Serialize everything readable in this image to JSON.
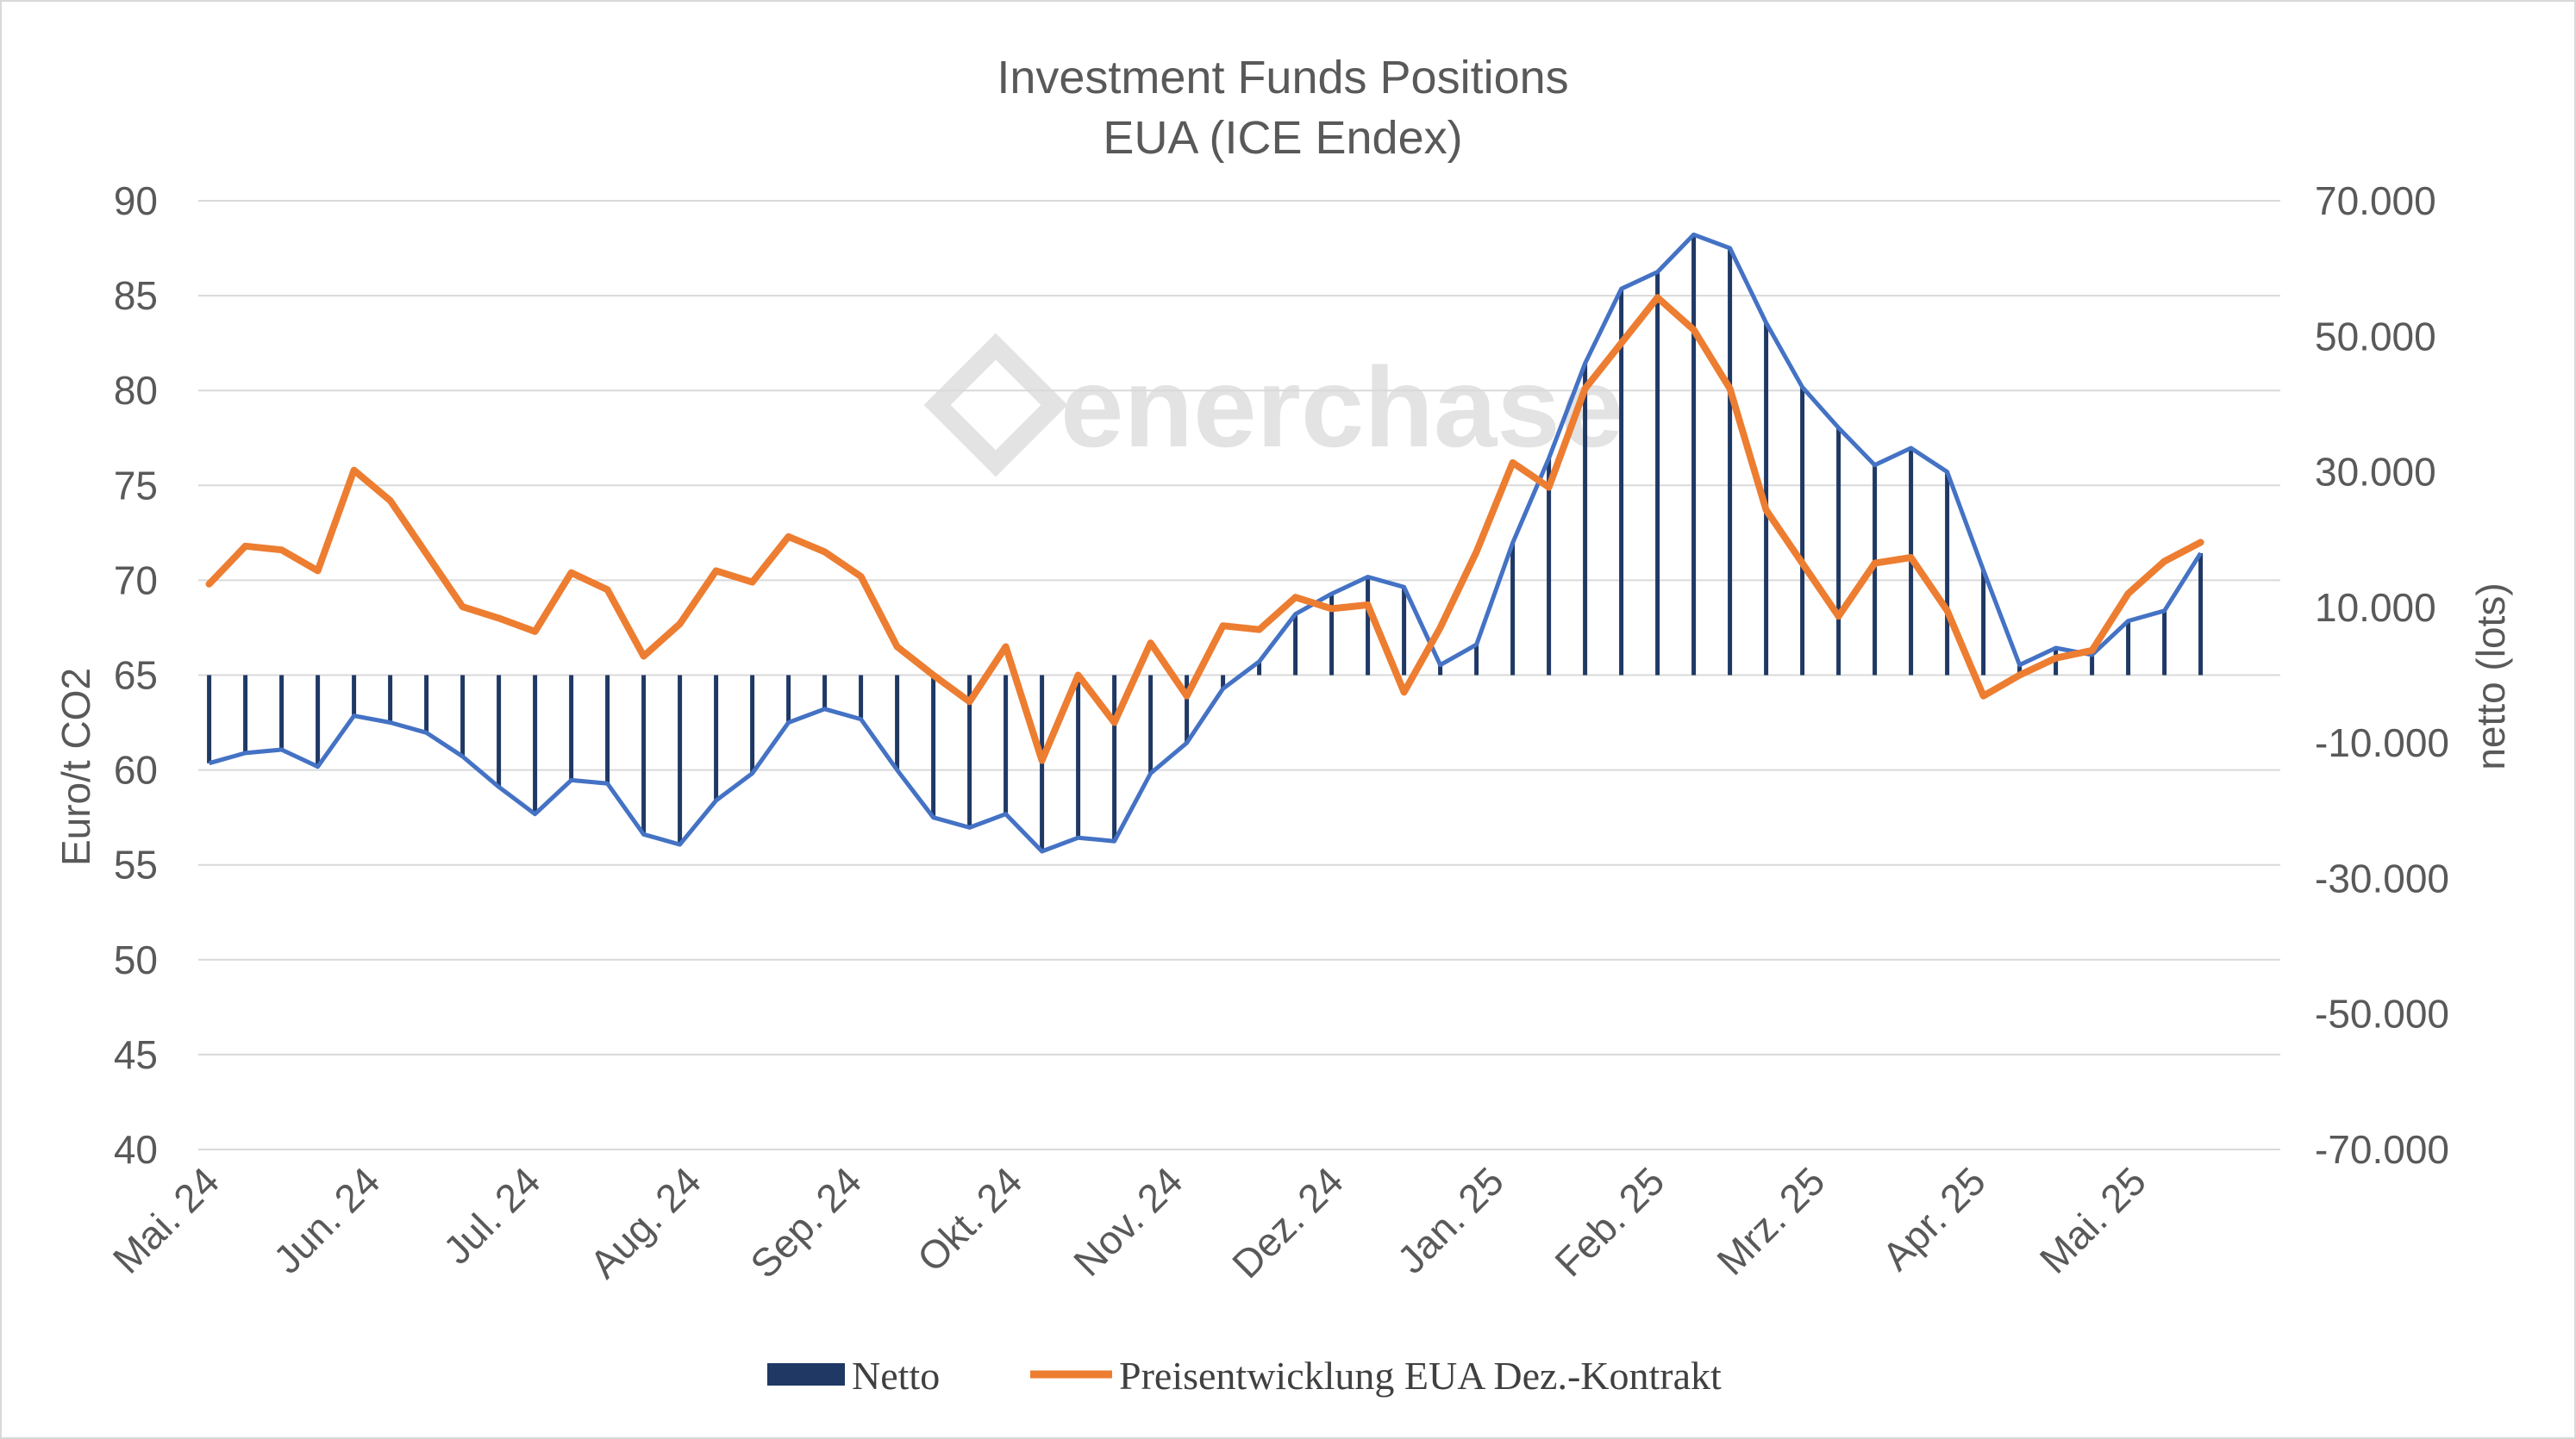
{
  "chart_data": {
    "type": "bar+line",
    "title": "Investment Funds Positions",
    "subtitle": "EUA (ICE Endex)",
    "watermark": "enerchase",
    "y_left": {
      "label": "Euro/t CO2",
      "range": [
        40,
        90
      ],
      "ticks": [
        "90",
        "85",
        "80",
        "75",
        "70",
        "65",
        "60",
        "55",
        "50",
        "45",
        "40"
      ]
    },
    "y_right": {
      "label": "netto (lots)",
      "range": [
        -70000,
        70000
      ],
      "ticks": [
        "70.000",
        "50.000",
        "30.000",
        "10.000",
        "-10.000",
        "-30.000",
        "-50.000",
        "-70.000"
      ]
    },
    "x_ticks": [
      "Mai. 24",
      "Jun. 24",
      "Jul. 24",
      "Aug. 24",
      "Sep. 24",
      "Okt. 24",
      "Nov. 24",
      "Dez. 24",
      "Jan. 25",
      "Feb. 25",
      "Mrz. 25",
      "Apr. 25",
      "Mai. 25"
    ],
    "grid": true,
    "legend_position": "bottom",
    "series": [
      {
        "name": "Netto",
        "type": "bar",
        "axis": "right",
        "color": "#1f3864",
        "outline_color": "#4472c4",
        "values": [
          -13000,
          -11500,
          -11000,
          -13500,
          -6000,
          -7000,
          -8500,
          -12000,
          -16500,
          -20500,
          -15500,
          -16000,
          -23500,
          -25000,
          -18500,
          -14500,
          -7000,
          -5000,
          -6500,
          -14000,
          -21000,
          -22500,
          -20500,
          -26000,
          -24000,
          -24500,
          -14500,
          -10000,
          -2000,
          2000,
          9000,
          12000,
          14500,
          13000,
          1500,
          4500,
          19500,
          32000,
          46000,
          57000,
          59500,
          65000,
          63000,
          52000,
          42500,
          36500,
          31000,
          33500,
          30000,
          15500,
          1500,
          4000,
          3000,
          8000,
          9500,
          18000
        ]
      },
      {
        "name": "Preisentwicklung EUA Dez.-Kontrakt",
        "type": "line",
        "axis": "left",
        "color": "#ed7d31",
        "values": [
          69.8,
          71.8,
          71.6,
          70.5,
          75.8,
          74.2,
          71.4,
          68.6,
          68.0,
          67.3,
          70.4,
          69.5,
          66.0,
          67.7,
          70.5,
          69.9,
          72.3,
          71.5,
          70.2,
          66.5,
          65.0,
          63.6,
          66.5,
          60.5,
          65.0,
          62.5,
          66.7,
          63.9,
          67.6,
          67.4,
          69.1,
          68.5,
          68.7,
          64.1,
          67.5,
          71.5,
          76.2,
          74.9,
          80.1,
          82.5,
          84.9,
          83.2,
          80.1,
          73.7,
          70.9,
          68.1,
          70.9,
          71.2,
          68.4,
          63.9,
          65.0,
          65.9,
          66.3,
          69.3,
          71.0,
          72.0
        ]
      }
    ]
  }
}
